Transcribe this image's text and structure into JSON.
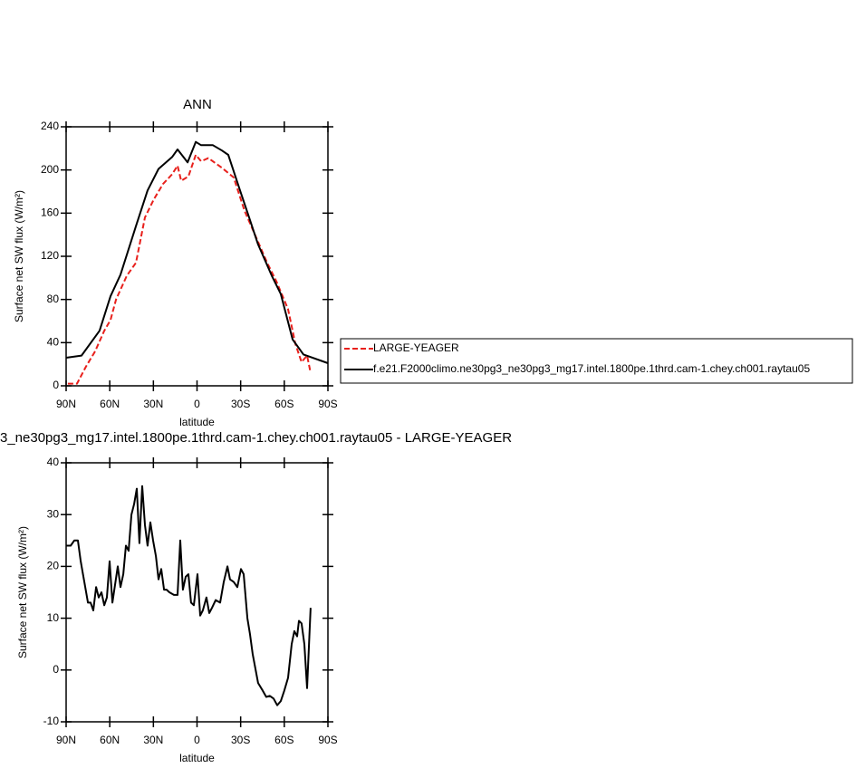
{
  "chart_data": [
    {
      "type": "line",
      "title": "ANN",
      "xlabel": "latitude",
      "ylabel": "Surface net SW flux (W/m²)",
      "xlim": [
        90,
        -90
      ],
      "xticks": [
        {
          "value": 90,
          "label": "90N"
        },
        {
          "value": 60,
          "label": "60N"
        },
        {
          "value": 30,
          "label": "30N"
        },
        0,
        {
          "value": -30,
          "label": "30S"
        },
        {
          "value": -60,
          "label": "60S"
        },
        {
          "value": -90,
          "label": "90S"
        }
      ],
      "ylim": [
        0,
        240
      ],
      "yticks": [
        0,
        40,
        80,
        120,
        160,
        200,
        240
      ],
      "legend": "right",
      "series": [
        {
          "name": "LARGE-YEAGER",
          "color": "#e8201c",
          "dashed": true,
          "x": [
            88.8,
            82.5,
            76.3,
            70.1,
            63.8,
            59.5,
            55.7,
            48.3,
            42.0,
            35.8,
            29.6,
            23.4,
            17.1,
            13.4,
            10.9,
            5.9,
            0.9,
            -2.8,
            -7.8,
            -17.1,
            -25.2,
            -32.7,
            -40.2,
            -48.2,
            -54.5,
            -62.6,
            -67.6,
            -71.9,
            -75.7,
            -78.1
          ],
          "values": [
            2,
            2,
            18,
            32,
            51,
            61,
            80,
            102,
            114,
            156,
            173,
            187,
            196,
            204,
            190,
            194,
            214,
            208,
            211,
            202,
            193,
            162,
            139,
            114,
            97,
            71,
            39,
            22,
            28,
            12
          ]
        },
        {
          "name": "f.e21.F2000climo.ne30pg3_ne30pg3_mg17.intel.1800pe.1thrd.cam-1.chey.ch001.raytau05",
          "color": "#000000",
          "dashed": false,
          "x": [
            90,
            79.4,
            67.0,
            59.5,
            52.6,
            42.0,
            34.0,
            26.5,
            17.1,
            13.4,
            6.5,
            0.9,
            -2.8,
            -10.9,
            -17.1,
            -21.5,
            -29.6,
            -35.8,
            -42.0,
            -51.4,
            -57.6,
            -65.7,
            -73.2,
            -90
          ],
          "values": [
            26,
            28,
            51,
            83,
            103,
            148,
            181,
            201,
            212,
            219,
            207,
            226,
            223,
            223,
            218,
            214,
            181,
            156,
            131,
            102,
            85,
            43,
            29,
            21
          ]
        }
      ]
    },
    {
      "type": "line",
      "title": "3_ne30pg3_mg17.intel.1800pe.1thrd.cam-1.chey.ch001.raytau05 - LARGE-YEAGER",
      "xlabel": "latitude",
      "ylabel": "Surface net SW flux (W/m²)",
      "xlim": [
        90,
        -90
      ],
      "xticks": [
        {
          "value": 90,
          "label": "90N"
        },
        {
          "value": 60,
          "label": "60N"
        },
        {
          "value": 30,
          "label": "30N"
        },
        0,
        {
          "value": -30,
          "label": "30S"
        },
        {
          "value": -60,
          "label": "60S"
        },
        {
          "value": -90,
          "label": "90S"
        }
      ],
      "ylim": [
        -10,
        40
      ],
      "yticks": [
        -10,
        0,
        10,
        20,
        30,
        40
      ],
      "series": [
        {
          "color": "#000000",
          "dashed": false,
          "x": [
            90,
            86.9,
            84.4,
            81.9,
            80.0,
            77.5,
            75.0,
            73.2,
            71.3,
            69.4,
            67.6,
            65.7,
            63.8,
            62.0,
            60.1,
            58.2,
            54.5,
            52.6,
            50.7,
            48.9,
            47.0,
            45.1,
            43.3,
            41.4,
            39.6,
            37.7,
            35.8,
            34.0,
            32.1,
            30.2,
            28.3,
            26.5,
            24.6,
            22.7,
            20.9,
            19.0,
            15.9,
            13.4,
            11.5,
            9.7,
            7.8,
            5.9,
            4.1,
            2.2,
            -0.3,
            -2.2,
            -4.0,
            -6.5,
            -8.4,
            -10.3,
            -12.8,
            -15.9,
            -18.4,
            -20.9,
            -22.7,
            -25.2,
            -27.7,
            -30.2,
            -32.1,
            -34.6,
            -36.4,
            -38.3,
            -42.0,
            -45.2,
            -47.6,
            -50.1,
            -52.6,
            -55.1,
            -57.6,
            -60.0,
            -62.6,
            -65.1,
            -66.9,
            -68.8,
            -70.1,
            -71.9,
            -73.8,
            -75.7,
            -78.1
          ],
          "values": [
            24,
            24,
            25,
            25,
            21,
            17,
            13,
            13,
            11.5,
            16,
            14,
            15,
            12.5,
            14,
            21,
            13,
            20,
            16,
            18.5,
            24,
            23,
            30,
            32,
            35,
            24.5,
            35.5,
            28,
            24,
            28.5,
            25,
            22,
            17.5,
            19.5,
            15.5,
            15.5,
            15,
            14.5,
            14.5,
            25,
            15.5,
            18,
            18.5,
            13,
            12.5,
            18.5,
            10.5,
            11.5,
            14,
            11,
            12,
            13.5,
            13,
            17,
            20,
            17.5,
            17,
            16,
            19.5,
            18.5,
            10,
            7,
            3,
            -2.5,
            -4,
            -5.2,
            -5,
            -5.5,
            -6.8,
            -6,
            -4,
            -1.5,
            5,
            7.5,
            6.5,
            9.5,
            9,
            5,
            -3.5,
            12
          ]
        }
      ]
    }
  ]
}
